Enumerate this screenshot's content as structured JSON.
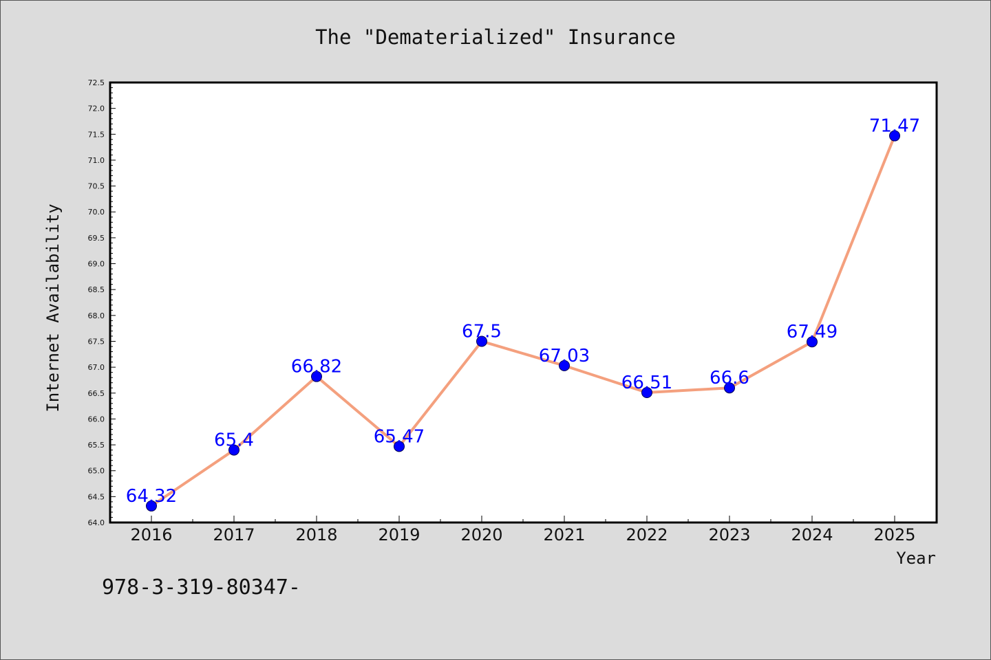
{
  "chart_data": {
    "type": "line",
    "title": "The \"Dematerialized\" Insurance",
    "xlabel": "Year",
    "ylabel": "Internet Availability",
    "categories": [
      "2016",
      "2017",
      "2018",
      "2019",
      "2020",
      "2021",
      "2022",
      "2023",
      "2024",
      "2025"
    ],
    "series": [
      {
        "values": [
          64.32,
          65.4,
          66.82,
          65.47,
          67.5,
          67.03,
          66.51,
          66.6,
          67.49,
          71.47
        ],
        "labels": [
          "64.32",
          "65.4",
          "66.82",
          "65.47",
          "67.5",
          "67.03",
          "66.51",
          "66.6",
          "67.49",
          "71.47"
        ],
        "line_color": "#f4a07e",
        "marker_color": "#0000ff"
      }
    ],
    "ylim": [
      64.0,
      72.5
    ],
    "yticks": [
      "64.0",
      "64.5",
      "65.0",
      "65.5",
      "66.0",
      "66.5",
      "67.0",
      "67.5",
      "68.0",
      "68.5",
      "69.0",
      "69.5",
      "70.0",
      "70.5",
      "71.0",
      "71.5",
      "72.0",
      "72.5"
    ],
    "grid": false,
    "legend": "none"
  },
  "footer_text": "978-3-319-80347-",
  "colors": {
    "background": "#dcdcdc",
    "plot_background": "#ffffff",
    "label_color": "#0000ff"
  }
}
